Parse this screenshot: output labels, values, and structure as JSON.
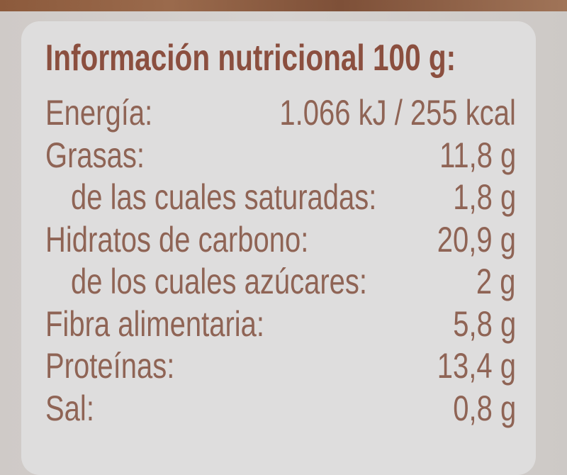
{
  "title": "Información nutricional 100 g:",
  "rows": [
    {
      "label": "Energía:",
      "value": "1.066 kJ / 255 kcal",
      "indent": false
    },
    {
      "label": "Grasas:",
      "value": "11,8 g",
      "indent": false
    },
    {
      "label": "de las cuales saturadas:",
      "value": "1,8 g",
      "indent": true
    },
    {
      "label": "Hidratos de carbono:",
      "value": "20,9 g",
      "indent": false
    },
    {
      "label": "de los cuales azúcares:",
      "value": "2 g",
      "indent": true
    },
    {
      "label": "Fibra alimentaria:",
      "value": "5,8 g",
      "indent": false
    },
    {
      "label": "Proteínas:",
      "value": "13,4 g",
      "indent": false
    },
    {
      "label": "Sal:",
      "value": "0,8 g",
      "indent": false
    }
  ],
  "colors": {
    "title": "#8b4f3f",
    "text": "#8f6455",
    "panel": "#dedddd",
    "background": "#d2cecb"
  }
}
